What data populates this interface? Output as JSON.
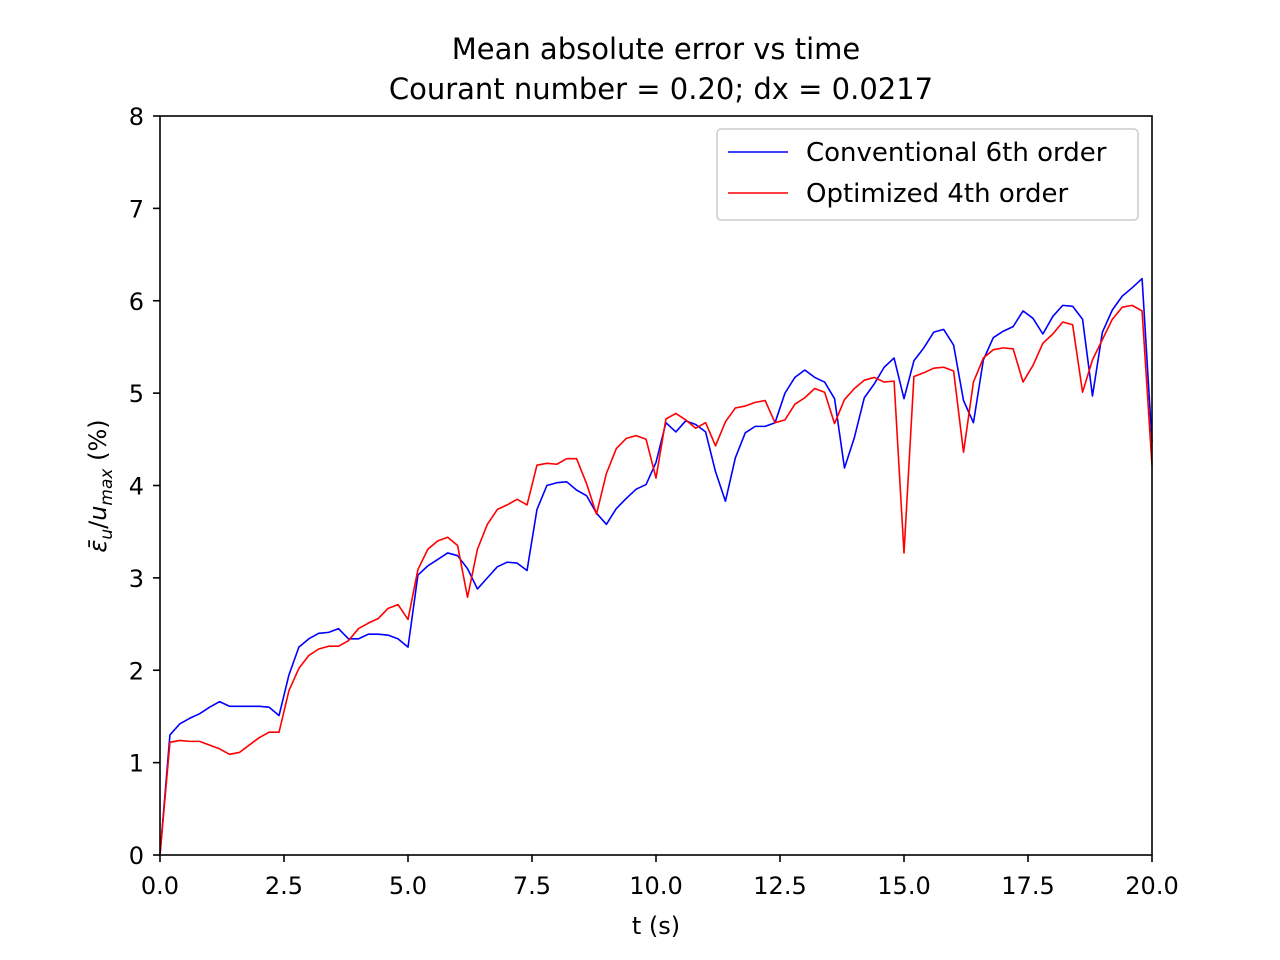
{
  "chart_data": {
    "type": "line",
    "title": "Mean absolute error vs time",
    "subtitle": "Courant number = 0.20; dx = 0.0217",
    "xlabel": "t (s)",
    "ylabel_parts": [
      "ε̄",
      "u",
      "/",
      "u",
      "max",
      " (%)"
    ],
    "xlim": [
      0,
      20
    ],
    "ylim": [
      0,
      8
    ],
    "xticks": [
      "0.0",
      "2.5",
      "5.0",
      "7.5",
      "10.0",
      "12.5",
      "15.0",
      "17.5",
      "20.0"
    ],
    "yticks": [
      "0",
      "1",
      "2",
      "3",
      "4",
      "5",
      "6",
      "7",
      "8"
    ],
    "grid": false,
    "legend_position": "top-right",
    "x": [
      0.0,
      0.2,
      0.4,
      0.6,
      0.8,
      1.0,
      1.2,
      1.4,
      1.6,
      1.8,
      2.0,
      2.2,
      2.4,
      2.6,
      2.8,
      3.0,
      3.2,
      3.4,
      3.6,
      3.8,
      4.0,
      4.2,
      4.4,
      4.6,
      4.8,
      5.0,
      5.2,
      5.4,
      5.6,
      5.8,
      6.0,
      6.2,
      6.4,
      6.6,
      6.8,
      7.0,
      7.2,
      7.4,
      7.6,
      7.8,
      8.0,
      8.2,
      8.4,
      8.6,
      8.8,
      9.0,
      9.2,
      9.4,
      9.6,
      9.8,
      10.0,
      10.2,
      10.4,
      10.6,
      10.8,
      11.0,
      11.2,
      11.4,
      11.6,
      11.8,
      12.0,
      12.2,
      12.4,
      12.6,
      12.8,
      13.0,
      13.2,
      13.4,
      13.6,
      13.8,
      14.0,
      14.2,
      14.4,
      14.6,
      14.8,
      15.0,
      15.2,
      15.4,
      15.6,
      15.8,
      16.0,
      16.2,
      16.4,
      16.6,
      16.8,
      17.0,
      17.2,
      17.4,
      17.6,
      17.8,
      18.0,
      18.2,
      18.4,
      18.6,
      18.8,
      19.0,
      19.2,
      19.4,
      19.6,
      19.8,
      20.0
    ],
    "series": [
      {
        "name": "Conventional 6th order",
        "color": "#0000ff",
        "values": [
          0.0,
          1.3,
          1.42,
          1.48,
          1.53,
          1.6,
          1.66,
          1.61,
          1.61,
          1.61,
          1.61,
          1.6,
          1.51,
          1.95,
          2.25,
          2.34,
          2.4,
          2.41,
          2.45,
          2.34,
          2.34,
          2.39,
          2.39,
          2.38,
          2.34,
          2.25,
          3.03,
          3.13,
          3.2,
          3.27,
          3.24,
          3.1,
          2.88,
          3.0,
          3.12,
          3.17,
          3.16,
          3.08,
          3.74,
          4.0,
          4.03,
          4.04,
          3.95,
          3.89,
          3.7,
          3.58,
          3.75,
          3.86,
          3.96,
          4.01,
          4.25,
          4.68,
          4.58,
          4.7,
          4.66,
          4.58,
          4.15,
          3.83,
          4.3,
          4.57,
          4.64,
          4.64,
          4.68,
          5.0,
          5.17,
          5.25,
          5.17,
          5.12,
          4.94,
          4.19,
          4.52,
          4.95,
          5.1,
          5.28,
          5.38,
          4.94,
          5.35,
          5.49,
          5.66,
          5.69,
          5.52,
          4.92,
          4.68,
          5.36,
          5.6,
          5.67,
          5.72,
          5.89,
          5.81,
          5.64,
          5.83,
          5.95,
          5.94,
          5.8,
          4.97,
          5.66,
          5.9,
          6.05,
          6.14,
          6.24,
          4.47
        ]
      },
      {
        "name": "Optimized 4th order",
        "color": "#ff0000",
        "values": [
          0.0,
          1.22,
          1.24,
          1.23,
          1.23,
          1.19,
          1.15,
          1.09,
          1.11,
          1.19,
          1.27,
          1.33,
          1.33,
          1.78,
          2.02,
          2.16,
          2.23,
          2.26,
          2.26,
          2.32,
          2.45,
          2.51,
          2.56,
          2.67,
          2.71,
          2.55,
          3.09,
          3.31,
          3.4,
          3.44,
          3.35,
          2.79,
          3.31,
          3.58,
          3.74,
          3.79,
          3.85,
          3.79,
          4.22,
          4.24,
          4.23,
          4.29,
          4.29,
          4.02,
          3.69,
          4.13,
          4.4,
          4.51,
          4.54,
          4.5,
          4.08,
          4.72,
          4.78,
          4.71,
          4.62,
          4.68,
          4.43,
          4.69,
          4.84,
          4.86,
          4.9,
          4.92,
          4.68,
          4.71,
          4.88,
          4.95,
          5.05,
          5.01,
          4.67,
          4.93,
          5.05,
          5.14,
          5.17,
          5.12,
          5.13,
          3.27,
          5.18,
          5.22,
          5.27,
          5.28,
          5.24,
          4.36,
          5.12,
          5.38,
          5.47,
          5.49,
          5.48,
          5.12,
          5.3,
          5.54,
          5.64,
          5.77,
          5.74,
          5.01,
          5.36,
          5.58,
          5.8,
          5.93,
          5.95,
          5.89,
          4.22
        ]
      }
    ]
  }
}
